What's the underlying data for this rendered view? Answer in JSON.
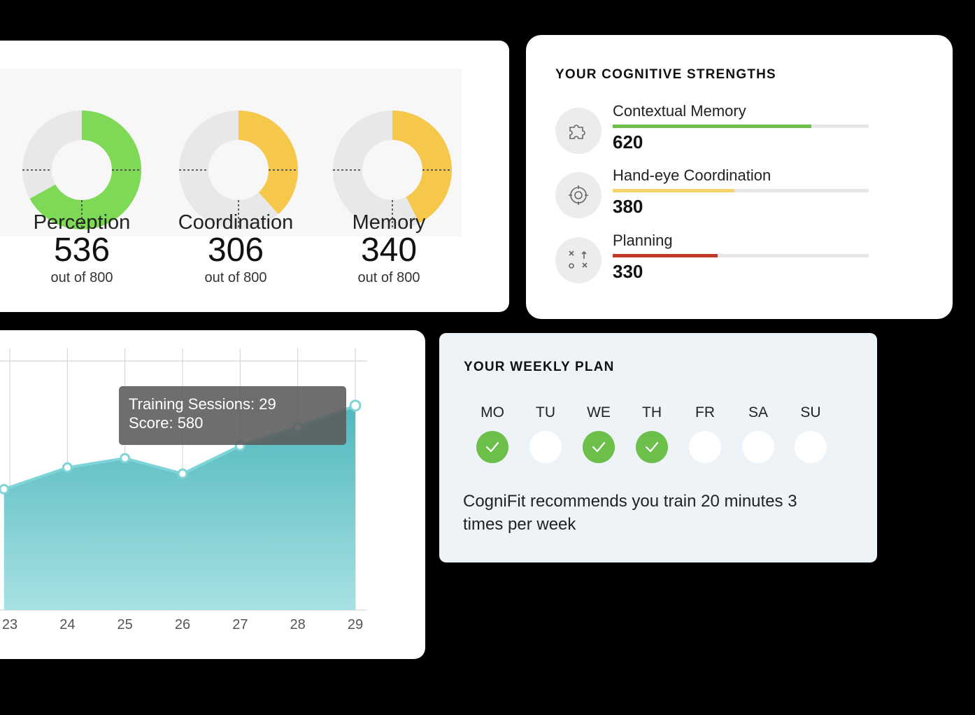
{
  "scores": {
    "items": [
      {
        "label": "Perception",
        "value": "536",
        "sub": "out of 800",
        "fraction": 0.67,
        "color": "#7ed957"
      },
      {
        "label": "Coordination",
        "value": "306",
        "sub": "out of 800",
        "fraction": 0.383,
        "color": "#f5c84c"
      },
      {
        "label": "Memory",
        "value": "340",
        "sub": "out of 800",
        "fraction": 0.425,
        "color": "#f5c84c"
      }
    ]
  },
  "strengths": {
    "title": "YOUR COGNITIVE STRENGTHS",
    "items": [
      {
        "name": "Contextual Memory",
        "value": "620",
        "fraction": 0.775,
        "color": "#6cc04a",
        "icon": "puzzle-icon"
      },
      {
        "name": "Hand-eye Coordination",
        "value": "380",
        "fraction": 0.475,
        "color": "#f5d36b",
        "icon": "target-icon"
      },
      {
        "name": "Planning",
        "value": "330",
        "fraction": 0.41,
        "color": "#c0392b",
        "icon": "strategy-icon"
      }
    ]
  },
  "chart": {
    "tooltip_line1": "Training Sessions: 29",
    "tooltip_line2": "Score: 580",
    "line_color": "#7fd4d8",
    "fill_color": "#4fb8bd"
  },
  "chart_data": {
    "type": "area",
    "x": [
      22.9,
      24,
      25,
      26,
      27,
      28,
      29
    ],
    "tick_labels": [
      "23",
      "24",
      "25",
      "26",
      "27",
      "28",
      "29"
    ],
    "y": [
      445,
      480,
      495,
      470,
      515,
      545,
      580
    ],
    "xlim": [
      22.8,
      29.2
    ],
    "ylim": [
      250,
      600
    ],
    "grid": true
  },
  "plan": {
    "title": "YOUR WEEKLY PLAN",
    "days": [
      {
        "label": "MO",
        "done": true
      },
      {
        "label": "TU",
        "done": false
      },
      {
        "label": "WE",
        "done": true
      },
      {
        "label": "TH",
        "done": true
      },
      {
        "label": "FR",
        "done": false
      },
      {
        "label": "SA",
        "done": false
      },
      {
        "label": "SU",
        "done": false
      }
    ],
    "recommendation": "CogniFit recommends you train 20 minutes 3 times per week"
  }
}
